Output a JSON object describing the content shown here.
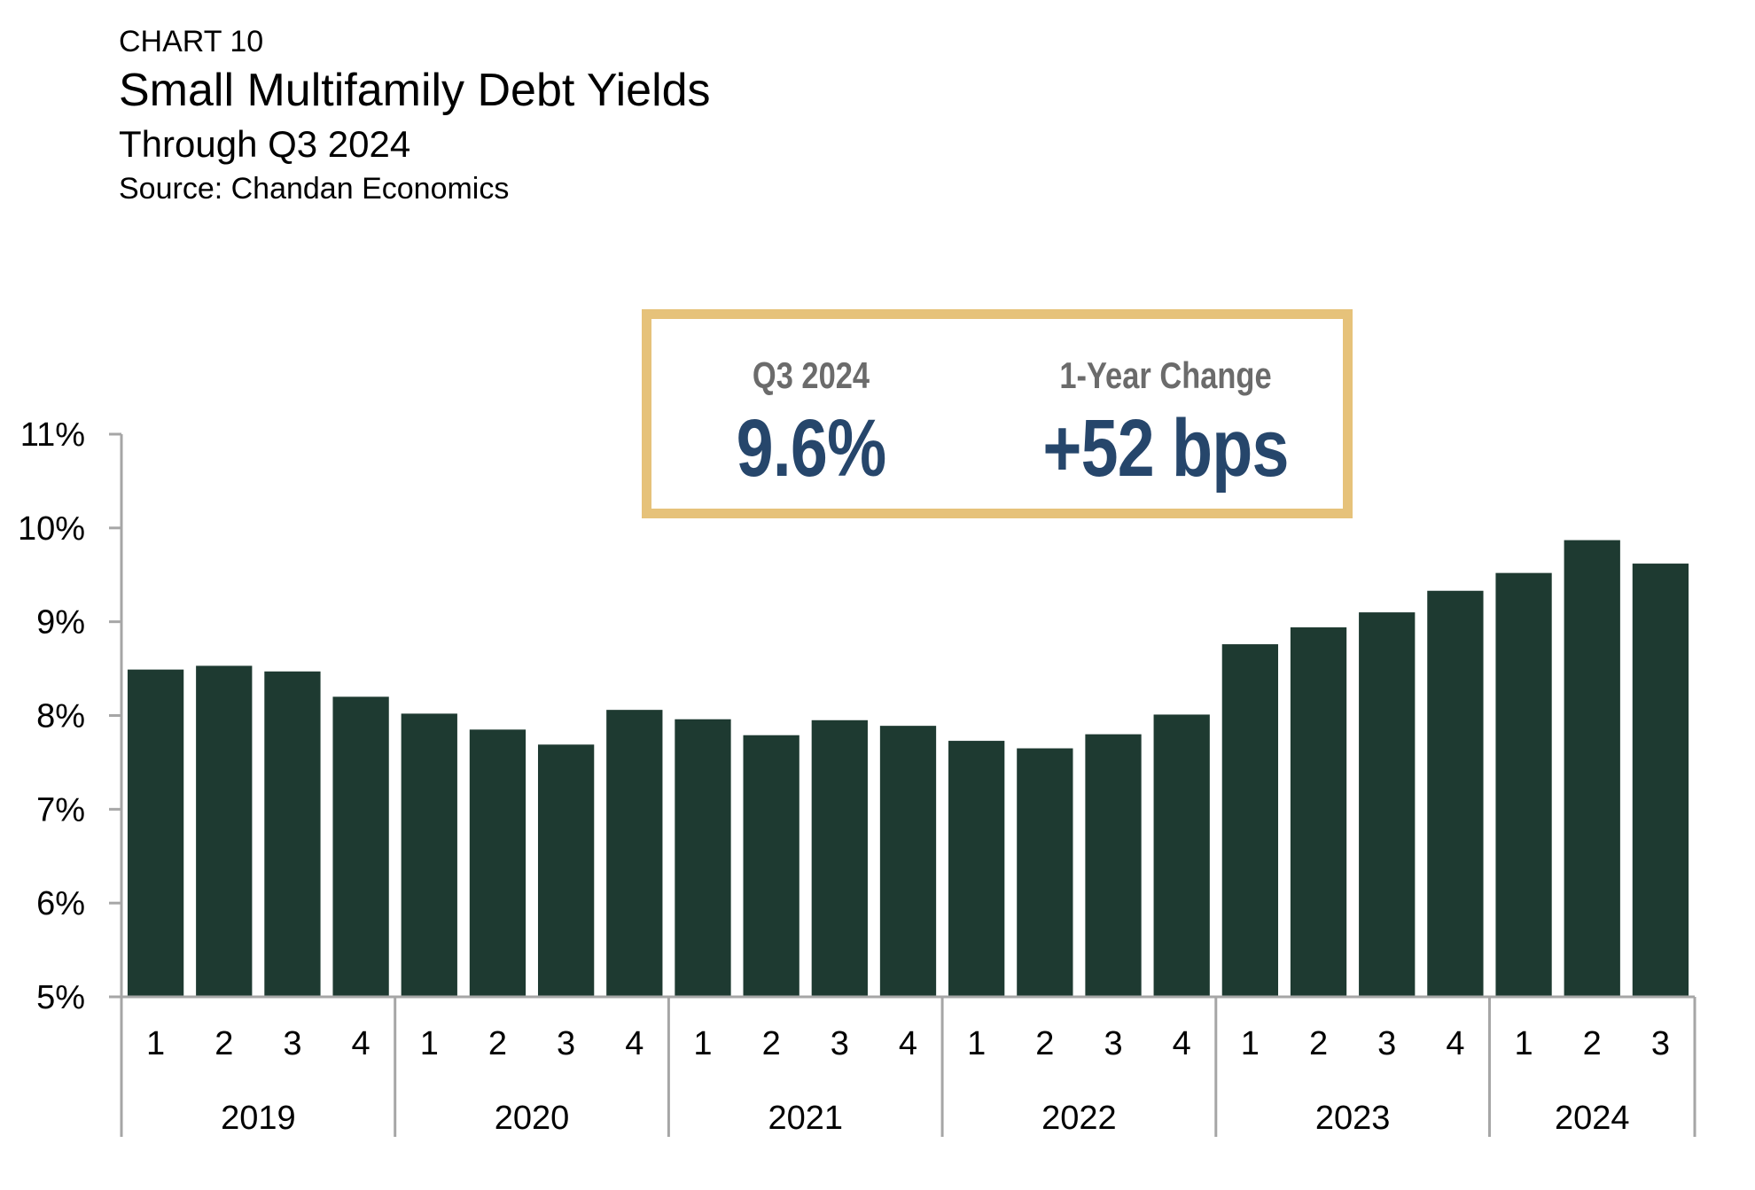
{
  "header": {
    "label": "CHART 10",
    "title": "Small Multifamily Debt Yields",
    "subtitle": "Through Q3 2024",
    "source": "Source: Chandan Economics"
  },
  "callout": {
    "current_label": "Q3 2024",
    "current_value": "9.6%",
    "change_label": "1-Year Change",
    "change_value": "+52 bps"
  },
  "colors": {
    "bar": "#1e3a31",
    "axis": "#a6a6a6",
    "callout_border": "#e6c27a",
    "callout_value": "#26466b"
  },
  "chart_data": {
    "type": "bar",
    "title": "Small Multifamily Debt Yields",
    "subtitle": "Through Q3 2024",
    "xlabel": "",
    "ylabel": "",
    "ylim": [
      5,
      11
    ],
    "yticks": [
      5,
      6,
      7,
      8,
      9,
      10,
      11
    ],
    "ytick_labels": [
      "5%",
      "6%",
      "7%",
      "8%",
      "9%",
      "10%",
      "11%"
    ],
    "grid": false,
    "years": [
      "2019",
      "2020",
      "2021",
      "2022",
      "2023",
      "2024"
    ],
    "categories": [
      {
        "year": "2019",
        "quarter": "1"
      },
      {
        "year": "2019",
        "quarter": "2"
      },
      {
        "year": "2019",
        "quarter": "3"
      },
      {
        "year": "2019",
        "quarter": "4"
      },
      {
        "year": "2020",
        "quarter": "1"
      },
      {
        "year": "2020",
        "quarter": "2"
      },
      {
        "year": "2020",
        "quarter": "3"
      },
      {
        "year": "2020",
        "quarter": "4"
      },
      {
        "year": "2021",
        "quarter": "1"
      },
      {
        "year": "2021",
        "quarter": "2"
      },
      {
        "year": "2021",
        "quarter": "3"
      },
      {
        "year": "2021",
        "quarter": "4"
      },
      {
        "year": "2022",
        "quarter": "1"
      },
      {
        "year": "2022",
        "quarter": "2"
      },
      {
        "year": "2022",
        "quarter": "3"
      },
      {
        "year": "2022",
        "quarter": "4"
      },
      {
        "year": "2023",
        "quarter": "1"
      },
      {
        "year": "2023",
        "quarter": "2"
      },
      {
        "year": "2023",
        "quarter": "3"
      },
      {
        "year": "2023",
        "quarter": "4"
      },
      {
        "year": "2024",
        "quarter": "1"
      },
      {
        "year": "2024",
        "quarter": "2"
      },
      {
        "year": "2024",
        "quarter": "3"
      }
    ],
    "values": [
      8.49,
      8.53,
      8.47,
      8.2,
      8.02,
      7.85,
      7.69,
      8.06,
      7.96,
      7.79,
      7.95,
      7.89,
      7.73,
      7.65,
      7.8,
      8.01,
      8.76,
      8.94,
      9.1,
      9.33,
      9.52,
      9.87,
      9.62
    ]
  }
}
